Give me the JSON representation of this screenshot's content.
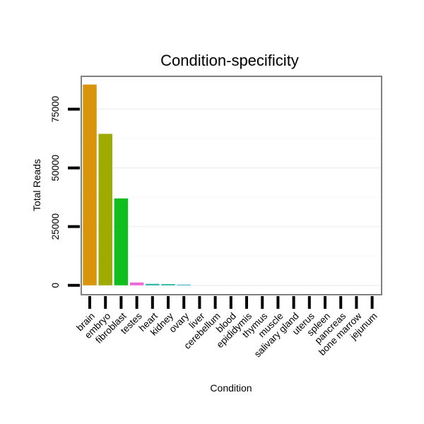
{
  "chart_data": {
    "type": "bar",
    "title": "Condition-specificity",
    "xlabel": "Condition",
    "ylabel": "Total Reads",
    "ylim": [
      -4000,
      89000
    ],
    "yticks": [
      0,
      25000,
      50000,
      75000
    ],
    "grid": true,
    "legend": "none",
    "categories": [
      "brain",
      "embryo",
      "fibroblast",
      "testes",
      "heart",
      "kidney",
      "ovary",
      "liver",
      "cerebellum",
      "blood",
      "epididymis",
      "thymus",
      "muscle",
      "salivary gland",
      "uterus",
      "spleen",
      "pancreas",
      "bone marrow",
      "jejunum"
    ],
    "values": [
      85500,
      64500,
      37000,
      1200,
      600,
      500,
      300,
      0,
      0,
      0,
      0,
      0,
      0,
      0,
      0,
      0,
      0,
      0,
      0
    ],
    "colors": [
      "#d8940a",
      "#9fab00",
      "#10bf1d",
      "#ee69d6",
      "#1bb39b",
      "#1bb39b",
      "#2aa7c8",
      "#cccccc",
      "#cccccc",
      "#cccccc",
      "#cccccc",
      "#cccccc",
      "#cccccc",
      "#cccccc",
      "#cccccc",
      "#cccccc",
      "#cccccc",
      "#cccccc",
      "#cccccc"
    ]
  }
}
